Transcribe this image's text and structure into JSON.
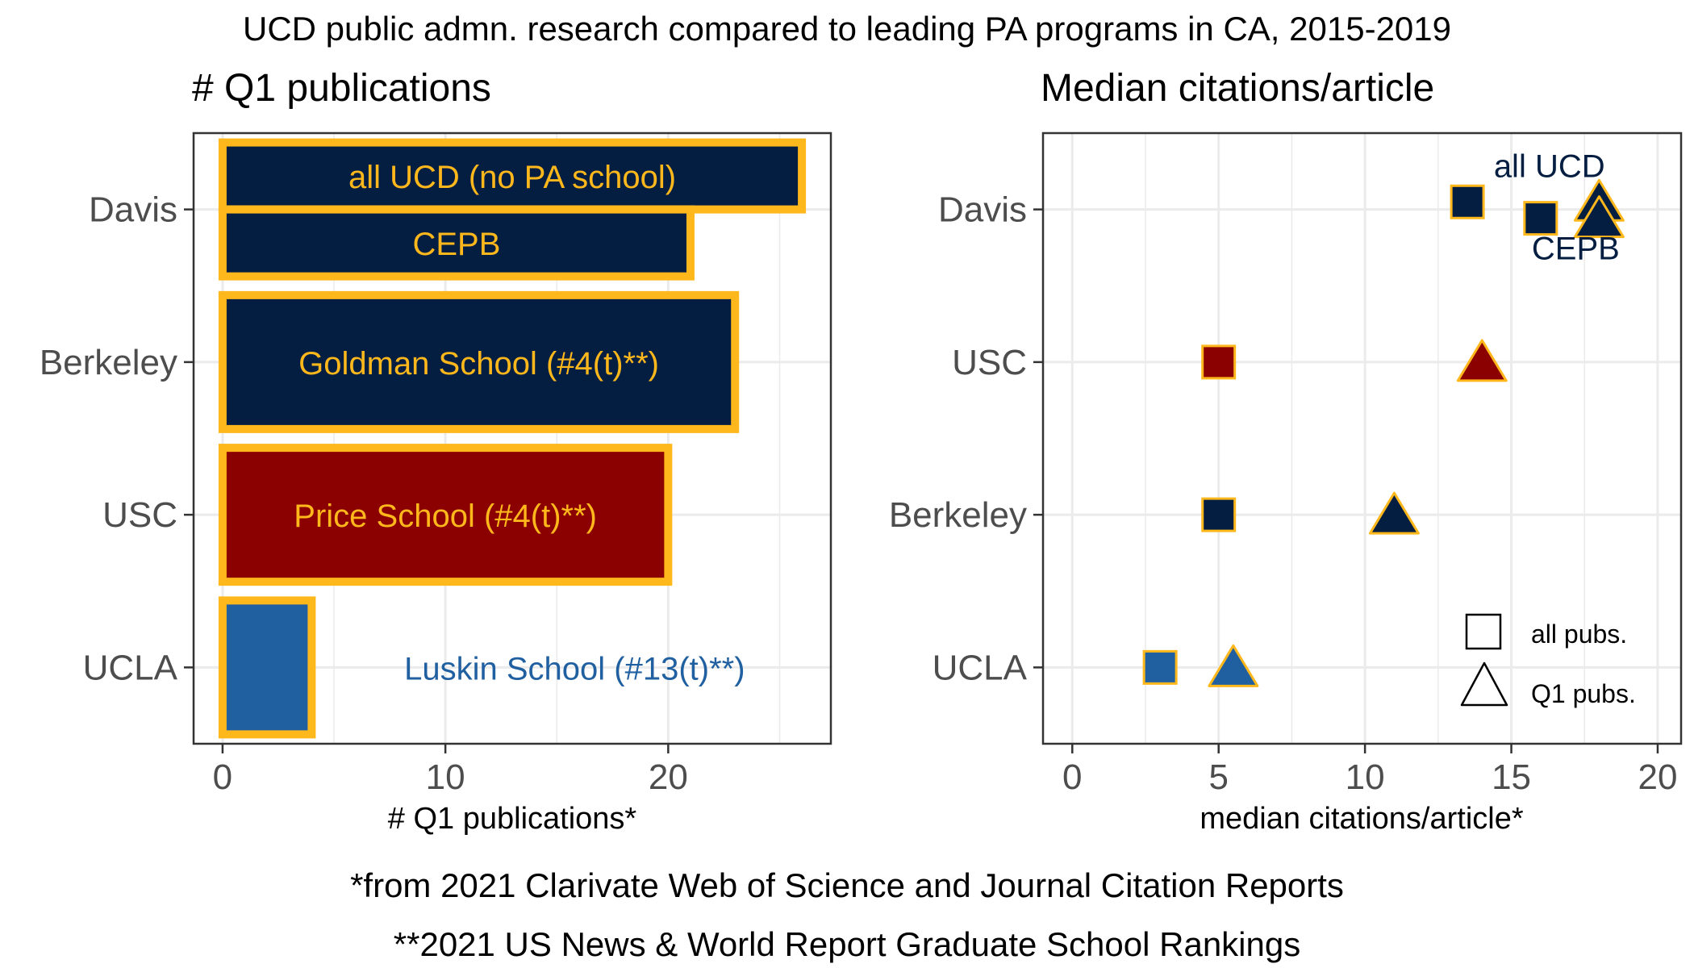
{
  "figure": {
    "title": "UCD public admn. research compared to leading PA programs in CA, 2015-2019",
    "footnote1": "*from 2021 Clarivate Web of Science and Journal Citation Reports",
    "footnote2": "**2021 US News & World Report Graduate School Rankings"
  },
  "colors": {
    "ucd_navy": "#041e42",
    "usc_cardinal": "#8b0000",
    "ucla_blue": "#2060a0",
    "gold_outline": "#ffb81c",
    "panel_border": "#333333",
    "grid": "#ebebeb",
    "text": "#000000",
    "axis_text": "#4d4d4d"
  },
  "chart_data": [
    {
      "type": "bar",
      "orientation": "horizontal",
      "title": "# Q1 publications",
      "xlabel": "# Q1 publications*",
      "ylabel": "",
      "categories": [
        "Davis",
        "Berkeley",
        "USC",
        "UCLA"
      ],
      "xlim": [
        -1.3,
        27.3
      ],
      "xticks": [
        0,
        10,
        20
      ],
      "grid": true,
      "bars": [
        {
          "category": "Davis",
          "value": 26,
          "label": "all UCD (no PA school)",
          "color": "ucd_navy",
          "label_color": "gold_outline",
          "slot": "upper"
        },
        {
          "category": "Davis",
          "value": 21,
          "label": "CEPB",
          "color": "ucd_navy",
          "label_color": "gold_outline",
          "slot": "lower"
        },
        {
          "category": "Berkeley",
          "value": 23,
          "label": "Goldman School (#4(t)**)",
          "color": "ucd_navy",
          "label_color": "gold_outline",
          "slot": "full"
        },
        {
          "category": "USC",
          "value": 20,
          "label": "Price School (#4(t)**)",
          "color": "usc_cardinal",
          "label_color": "gold_outline",
          "slot": "full"
        },
        {
          "category": "UCLA",
          "value": 4,
          "label": "Luskin School (#13(t)**)",
          "color": "ucla_blue",
          "label_color": "ucla_blue",
          "slot": "full"
        }
      ]
    },
    {
      "type": "scatter",
      "title": "Median citations/article",
      "xlabel": "median citations/article*",
      "ylabel": "",
      "categories": [
        "UCLA",
        "Berkeley",
        "USC",
        "Davis"
      ],
      "xlim": [
        -1,
        20.8
      ],
      "xticks": [
        0,
        5,
        10,
        15,
        20
      ],
      "grid": true,
      "legend_position": "bottom-right",
      "legend": [
        {
          "shape": "square",
          "label": "all pubs."
        },
        {
          "shape": "triangle",
          "label": "Q1 pubs."
        }
      ],
      "points": [
        {
          "category": "Davis",
          "offset": "up",
          "x": 13.5,
          "shape": "square",
          "color": "ucd_navy"
        },
        {
          "category": "Davis",
          "offset": "up",
          "x": 18,
          "shape": "triangle",
          "color": "ucd_navy"
        },
        {
          "category": "Davis",
          "offset": "down",
          "x": 16,
          "shape": "square",
          "color": "ucd_navy"
        },
        {
          "category": "Davis",
          "offset": "down",
          "x": 18,
          "shape": "triangle",
          "color": "ucd_navy"
        },
        {
          "category": "USC",
          "offset": "none",
          "x": 5,
          "shape": "square",
          "color": "usc_cardinal"
        },
        {
          "category": "USC",
          "offset": "none",
          "x": 14,
          "shape": "triangle",
          "color": "usc_cardinal"
        },
        {
          "category": "Berkeley",
          "offset": "none",
          "x": 5,
          "shape": "square",
          "color": "ucd_navy"
        },
        {
          "category": "Berkeley",
          "offset": "none",
          "x": 11,
          "shape": "triangle",
          "color": "ucd_navy"
        },
        {
          "category": "UCLA",
          "offset": "none",
          "x": 3,
          "shape": "square",
          "color": "ucla_blue"
        },
        {
          "category": "UCLA",
          "offset": "none",
          "x": 5.5,
          "shape": "triangle",
          "color": "ucla_blue"
        }
      ],
      "annotations": [
        {
          "text": "all UCD",
          "category": "Davis",
          "x": 16.3,
          "offset": "up"
        },
        {
          "text": "CEPB",
          "category": "Davis",
          "x": 17.2,
          "offset": "down"
        }
      ]
    }
  ]
}
